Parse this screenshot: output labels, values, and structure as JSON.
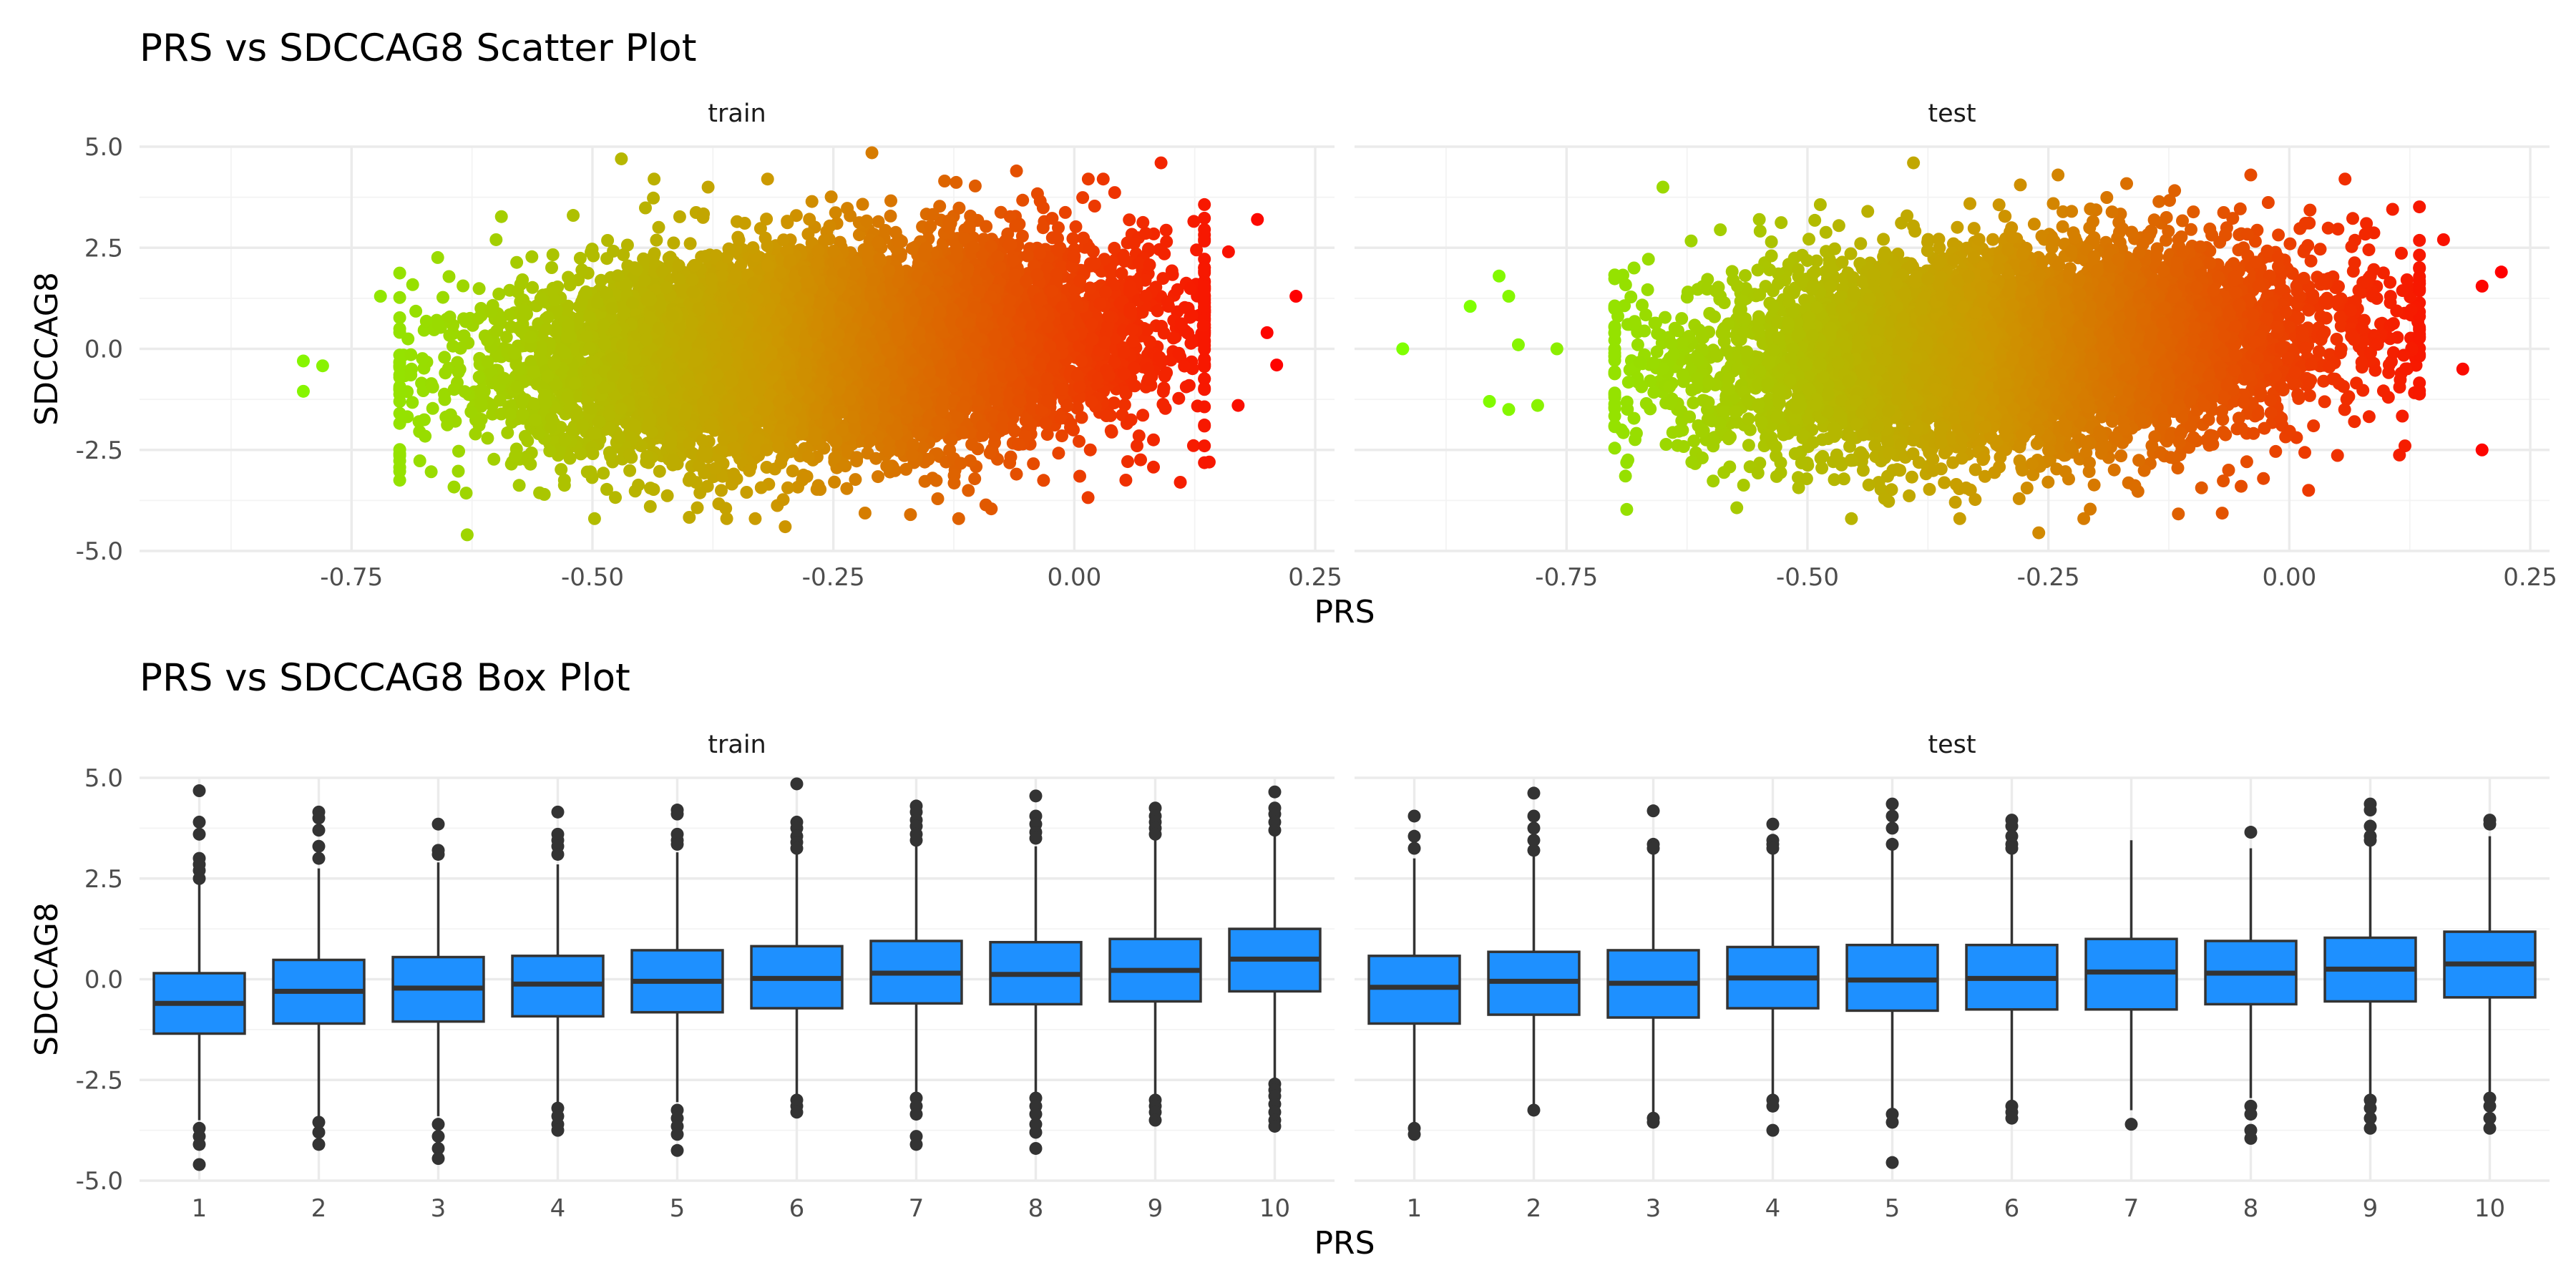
{
  "chart_data": [
    {
      "type": "scatter",
      "title": "PRS vs SDCCAG8 Scatter Plot",
      "xlabel": "PRS",
      "ylabel": "SDCCAG8",
      "xlim": [
        -0.97,
        0.27
      ],
      "ylim": [
        -5.0,
        5.0
      ],
      "x_ticks": [
        "-0.75",
        "-0.50",
        "-0.25",
        "0.00",
        "0.25"
      ],
      "y_ticks": [
        "-5.0",
        "-2.5",
        "0.0",
        "2.5",
        "5.0"
      ],
      "color_scale": {
        "low": "#7fff00",
        "mid": "#cc9900",
        "high": "#ff0000"
      },
      "grid": true,
      "panels": [
        {
          "name": "train",
          "cloud": {
            "x_center": -0.25,
            "x_sd": 0.16,
            "y_sd": 1.2,
            "slope": 1.6,
            "n": 9000
          },
          "points": [
            [
              -0.8,
              -0.3
            ],
            [
              -0.8,
              -1.05
            ],
            [
              -0.78,
              -0.42
            ],
            [
              -0.72,
              1.3
            ],
            [
              -0.63,
              -4.6
            ],
            [
              -0.47,
              4.7
            ],
            [
              -0.21,
              4.85
            ],
            [
              -0.38,
              4.0
            ],
            [
              -0.3,
              -4.4
            ],
            [
              -0.12,
              -4.2
            ],
            [
              -0.17,
              -4.1
            ],
            [
              -0.06,
              4.4
            ],
            [
              0.03,
              4.2
            ],
            [
              0.09,
              4.6
            ],
            [
              0.19,
              3.2
            ],
            [
              0.23,
              1.3
            ],
            [
              0.2,
              0.4
            ],
            [
              0.21,
              -0.4
            ],
            [
              0.17,
              -1.4
            ],
            [
              0.14,
              -2.8
            ],
            [
              -0.55,
              -3.6
            ],
            [
              -0.6,
              2.7
            ],
            [
              -0.68,
              -1.8
            ],
            [
              -0.52,
              3.3
            ],
            [
              0.11,
              -3.3
            ],
            [
              0.16,
              2.4
            ],
            [
              -0.66,
              0.6
            ],
            [
              -0.44,
              -3.9
            ]
          ]
        },
        {
          "name": "test",
          "cloud": {
            "x_center": -0.28,
            "x_sd": 0.16,
            "y_sd": 1.2,
            "slope": 1.6,
            "n": 7000
          },
          "points": [
            [
              -0.92,
              0.0
            ],
            [
              -0.85,
              1.05
            ],
            [
              -0.83,
              -1.3
            ],
            [
              -0.81,
              -1.5
            ],
            [
              -0.78,
              -1.4
            ],
            [
              -0.82,
              1.8
            ],
            [
              -0.8,
              0.1
            ],
            [
              -0.81,
              1.3
            ],
            [
              -0.76,
              0.0
            ],
            [
              -0.65,
              4.0
            ],
            [
              -0.39,
              4.6
            ],
            [
              -0.24,
              4.3
            ],
            [
              -0.04,
              4.3
            ],
            [
              -0.26,
              -4.55
            ],
            [
              -0.05,
              -3.4
            ],
            [
              -0.42,
              -3.7
            ],
            [
              0.2,
              1.55
            ],
            [
              0.22,
              1.9
            ],
            [
              0.2,
              -2.5
            ],
            [
              0.18,
              -0.5
            ],
            [
              0.16,
              2.7
            ],
            [
              0.08,
              3.1
            ],
            [
              0.12,
              -2.4
            ],
            [
              -0.7,
              -1.2
            ],
            [
              -0.68,
              2.0
            ],
            [
              -0.62,
              -2.8
            ],
            [
              -0.55,
              3.2
            ],
            [
              0.02,
              -3.5
            ]
          ]
        }
      ]
    },
    {
      "type": "box",
      "title": "PRS vs SDCCAG8 Box Plot",
      "xlabel": "PRS",
      "ylabel": "SDCCAG8",
      "ylim": [
        -5.0,
        5.0
      ],
      "categories": [
        "1",
        "2",
        "3",
        "4",
        "5",
        "6",
        "7",
        "8",
        "9",
        "10"
      ],
      "y_ticks": [
        "-5.0",
        "-2.5",
        "0.0",
        "2.5",
        "5.0"
      ],
      "fill": "#1e90ff",
      "grid": true,
      "panels": [
        {
          "name": "train",
          "boxes": [
            {
              "q1": -1.35,
              "median": -0.6,
              "q3": 0.15,
              "low": -3.5,
              "high": 2.4,
              "outliers": [
                4.68,
                3.9,
                3.6,
                3.0,
                2.85,
                2.7,
                2.5,
                -3.7,
                -3.9,
                -4.1,
                -4.6
              ]
            },
            {
              "q1": -1.1,
              "median": -0.3,
              "q3": 0.48,
              "low": -3.4,
              "high": 2.75,
              "outliers": [
                4.15,
                4.0,
                3.7,
                3.3,
                3.0,
                -3.55,
                -3.8,
                -4.1
              ]
            },
            {
              "q1": -1.05,
              "median": -0.22,
              "q3": 0.55,
              "low": -3.4,
              "high": 2.9,
              "outliers": [
                3.85,
                3.2,
                3.1,
                -3.6,
                -3.9,
                -4.2,
                -4.45
              ]
            },
            {
              "q1": -0.92,
              "median": -0.12,
              "q3": 0.58,
              "low": -3.1,
              "high": 2.85,
              "outliers": [
                4.15,
                3.6,
                3.45,
                3.3,
                3.1,
                -3.2,
                -3.4,
                -3.6,
                -3.75
              ]
            },
            {
              "q1": -0.82,
              "median": -0.05,
              "q3": 0.72,
              "low": -3.05,
              "high": 3.15,
              "outliers": [
                4.2,
                4.1,
                3.6,
                3.45,
                3.35,
                -3.25,
                -3.45,
                -3.65,
                -3.85,
                -4.25
              ]
            },
            {
              "q1": -0.72,
              "median": 0.02,
              "q3": 0.82,
              "low": -2.95,
              "high": 3.1,
              "outliers": [
                4.85,
                3.9,
                3.75,
                3.55,
                3.4,
                3.25,
                -3.0,
                -3.15,
                -3.3
              ]
            },
            {
              "q1": -0.6,
              "median": 0.15,
              "q3": 0.95,
              "low": -2.85,
              "high": 3.35,
              "outliers": [
                4.3,
                4.15,
                3.95,
                3.8,
                3.6,
                3.45,
                -2.95,
                -3.15,
                -3.35,
                -3.9,
                -4.1
              ]
            },
            {
              "q1": -0.62,
              "median": 0.12,
              "q3": 0.92,
              "low": -2.85,
              "high": 3.3,
              "outliers": [
                4.55,
                4.05,
                3.85,
                3.65,
                3.5,
                -2.95,
                -3.15,
                -3.35,
                -3.6,
                -3.8,
                -4.2
              ]
            },
            {
              "q1": -0.55,
              "median": 0.22,
              "q3": 1.0,
              "low": -2.9,
              "high": 3.45,
              "outliers": [
                4.25,
                4.05,
                3.9,
                3.75,
                3.6,
                -3.0,
                -3.15,
                -3.3,
                -3.5
              ]
            },
            {
              "q1": -0.3,
              "median": 0.5,
              "q3": 1.25,
              "low": -2.45,
              "high": 3.55,
              "outliers": [
                4.65,
                4.25,
                4.1,
                3.9,
                3.7,
                -2.6,
                -2.75,
                -2.9,
                -3.1,
                -3.3,
                -3.5,
                -3.65
              ]
            }
          ]
        },
        {
          "name": "test",
          "boxes": [
            {
              "q1": -1.1,
              "median": -0.2,
              "q3": 0.58,
              "low": -3.55,
              "high": 3.0,
              "outliers": [
                4.05,
                3.55,
                3.25,
                -3.7,
                -3.85
              ]
            },
            {
              "q1": -0.88,
              "median": -0.05,
              "q3": 0.68,
              "low": -3.1,
              "high": 3.05,
              "outliers": [
                4.62,
                4.05,
                3.75,
                3.45,
                3.2,
                -3.25
              ]
            },
            {
              "q1": -0.95,
              "median": -0.1,
              "q3": 0.72,
              "low": -3.3,
              "high": 3.25,
              "outliers": [
                4.18,
                3.35,
                3.25,
                -3.45,
                -3.55
              ]
            },
            {
              "q1": -0.72,
              "median": 0.03,
              "q3": 0.8,
              "low": -2.85,
              "high": 3.2,
              "outliers": [
                3.85,
                3.45,
                3.35,
                3.25,
                -3.0,
                -3.15,
                -3.75
              ]
            },
            {
              "q1": -0.78,
              "median": -0.02,
              "q3": 0.85,
              "low": -3.2,
              "high": 3.2,
              "outliers": [
                4.35,
                4.05,
                3.75,
                3.35,
                -3.35,
                -3.55,
                -4.55
              ]
            },
            {
              "q1": -0.75,
              "median": 0.02,
              "q3": 0.85,
              "low": -3.05,
              "high": 3.2,
              "outliers": [
                3.95,
                3.8,
                3.55,
                3.35,
                3.25,
                -3.15,
                -3.3,
                -3.45
              ]
            },
            {
              "q1": -0.75,
              "median": 0.18,
              "q3": 1.0,
              "low": -3.25,
              "high": 3.45,
              "outliers": [
                -3.6
              ]
            },
            {
              "q1": -0.62,
              "median": 0.15,
              "q3": 0.95,
              "low": -2.95,
              "high": 3.25,
              "outliers": [
                3.65,
                -3.15,
                -3.35,
                -3.75,
                -3.95
              ]
            },
            {
              "q1": -0.55,
              "median": 0.25,
              "q3": 1.03,
              "low": -2.9,
              "high": 3.35,
              "outliers": [
                4.35,
                4.2,
                3.8,
                3.55,
                3.45,
                -3.0,
                -3.2,
                -3.45,
                -3.7
              ]
            },
            {
              "q1": -0.45,
              "median": 0.38,
              "q3": 1.18,
              "low": -2.8,
              "high": 3.55,
              "outliers": [
                3.95,
                3.85,
                -2.95,
                -3.15,
                -3.45,
                -3.7
              ]
            }
          ]
        }
      ]
    }
  ]
}
